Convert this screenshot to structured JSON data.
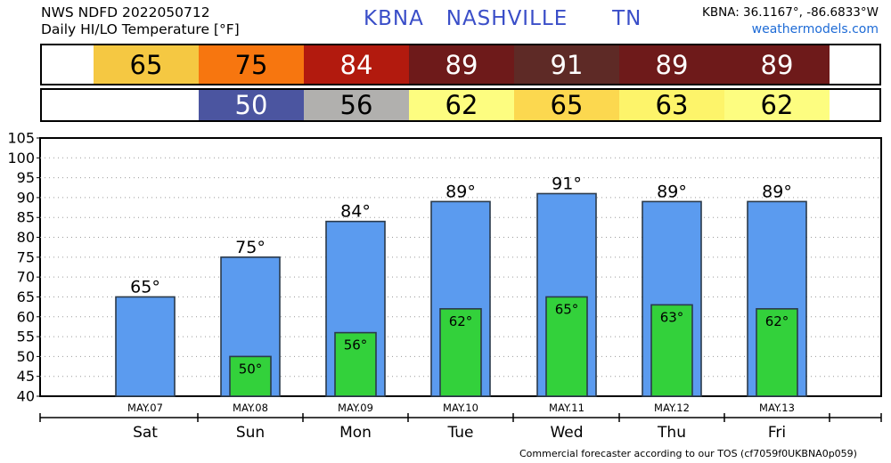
{
  "header": {
    "line1": "NWS NDFD 2022050712",
    "line2": "Daily HI/LO Temperature [°F]",
    "station": "KBNA   NASHVILLE      TN",
    "coords": "KBNA: 36.1167°, -86.6833°W",
    "site": "weathermodels.com"
  },
  "hi_strip": [
    {
      "value": "65",
      "bg": "#f5c842",
      "fg": "#000000"
    },
    {
      "value": "75",
      "bg": "#f7760f",
      "fg": "#000000"
    },
    {
      "value": "84",
      "bg": "#b21a0e",
      "fg": "#ffffff"
    },
    {
      "value": "89",
      "bg": "#6e1a1a",
      "fg": "#ffffff"
    },
    {
      "value": "91",
      "bg": "#5e2a26",
      "fg": "#ffffff"
    },
    {
      "value": "89",
      "bg": "#6e1a1a",
      "fg": "#ffffff"
    },
    {
      "value": "89",
      "bg": "#6e1a1a",
      "fg": "#ffffff"
    }
  ],
  "lo_strip": [
    {
      "value": "",
      "bg": "#ffffff",
      "fg": "#000000"
    },
    {
      "value": "50",
      "bg": "#4b55a0",
      "fg": "#ffffff"
    },
    {
      "value": "56",
      "bg": "#b1b0ae",
      "fg": "#000000"
    },
    {
      "value": "62",
      "bg": "#fdfd80",
      "fg": "#000000"
    },
    {
      "value": "65",
      "bg": "#fcd84f",
      "fg": "#000000"
    },
    {
      "value": "63",
      "bg": "#fdf46a",
      "fg": "#000000"
    },
    {
      "value": "62",
      "bg": "#fdfd80",
      "fg": "#000000"
    }
  ],
  "chart_data": {
    "type": "bar",
    "categories": [
      "Sat",
      "Sun",
      "Mon",
      "Tue",
      "Wed",
      "Thu",
      "Fri"
    ],
    "dates": [
      "MAY.07",
      "MAY.08",
      "MAY.09",
      "MAY.10",
      "MAY.11",
      "MAY.12",
      "MAY.13"
    ],
    "series": [
      {
        "values": [
          65,
          75,
          84,
          89,
          91,
          89,
          89
        ],
        "color": "#5b9bef"
      },
      {
        "values": [
          null,
          50,
          56,
          62,
          65,
          63,
          62
        ],
        "color": "#33d13b"
      }
    ],
    "high_labels": [
      "65°",
      "75°",
      "84°",
      "89°",
      "91°",
      "89°",
      "89°"
    ],
    "low_labels": [
      "",
      "50°",
      "56°",
      "62°",
      "65°",
      "63°",
      "62°"
    ],
    "y_ticks": [
      "40",
      "45",
      "50",
      "55",
      "60",
      "65",
      "70",
      "75",
      "80",
      "85",
      "90",
      "95",
      "100",
      "105"
    ],
    "ylim": [
      40,
      105
    ],
    "grid": true
  },
  "footer": "Commercial forecaster according to our TOS (cf7059f0UKBNA0p059)"
}
